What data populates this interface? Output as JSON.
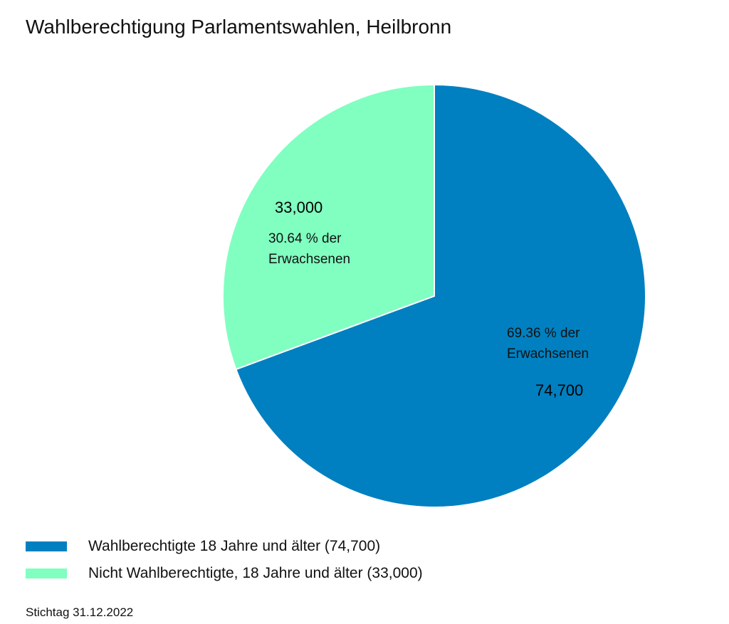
{
  "chart_data": {
    "type": "pie",
    "title": "Wahlberechtigung Parlamentswahlen, Heilbronn",
    "slices": [
      {
        "label": "Wahlberechtigte 18 Jahre und älter (74,700)",
        "value": 74700,
        "value_label": "74,700",
        "percent_label": [
          "69.36 % der",
          "Erwachsenen"
        ],
        "color": "#0080c0"
      },
      {
        "label": "Nicht Wahlberechtigte, 18 Jahre und älter (33,000)",
        "value": 33000,
        "value_label": "33,000",
        "percent_label": [
          "30.64 % der",
          "Erwachsenen"
        ],
        "color": "#80ffc0"
      }
    ],
    "start_angle": "12 o'clock",
    "direction": "clockwise",
    "legend_position": "bottom-left"
  },
  "footnote": "Stichtag 31.12.2022"
}
